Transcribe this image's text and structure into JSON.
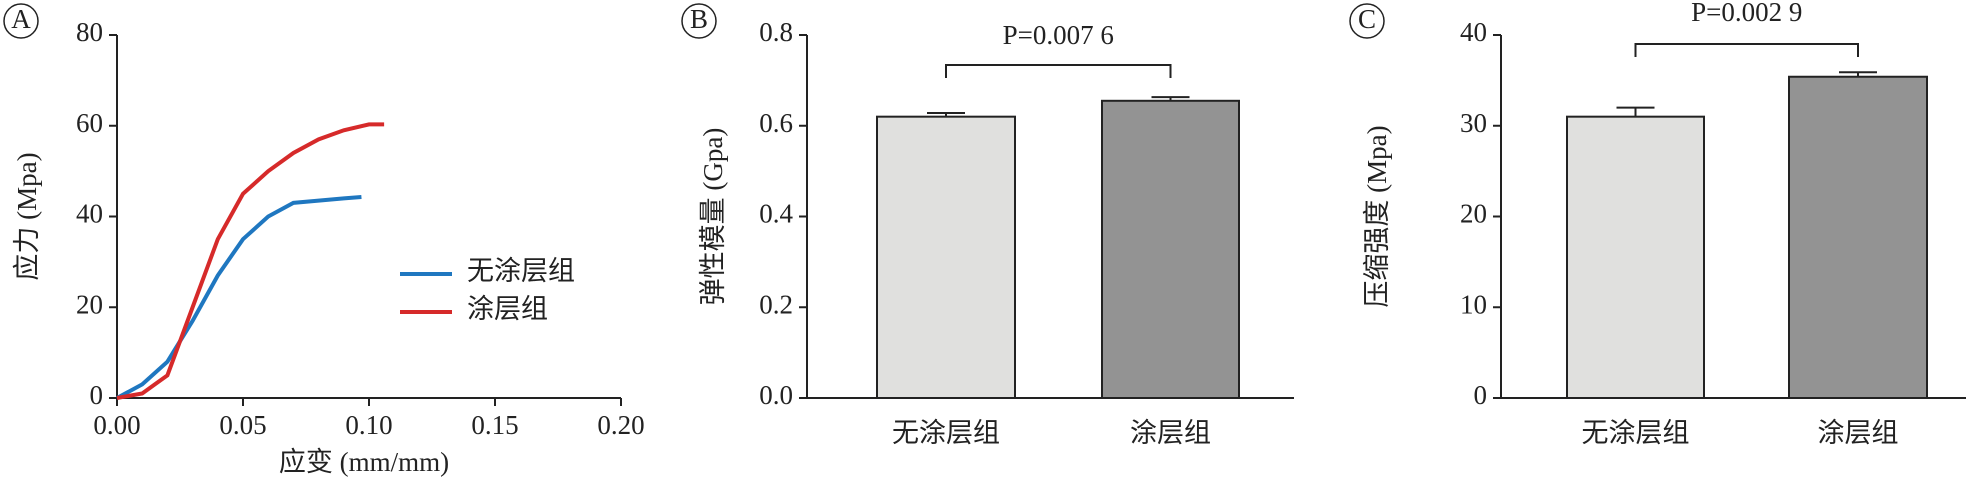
{
  "chart_data": [
    {
      "type": "line",
      "panel": "A",
      "xlabel": "应变 (mm/mm)",
      "ylabel": "应力 (Mpa)",
      "xlim": [
        0,
        0.2
      ],
      "xticks": [
        {
          "value": 0,
          "label": "0.00"
        },
        0.05,
        {
          "value": 0.1,
          "label": "0.10"
        },
        0.15,
        {
          "value": 0.2,
          "label": "0.20"
        }
      ],
      "ylim": [
        0,
        80
      ],
      "yticks": [
        0,
        20,
        40,
        60,
        80
      ],
      "series": [
        {
          "name": "无涂层组",
          "color": "#1f77c0",
          "x": [
            0,
            0.01,
            0.02,
            0.03,
            0.04,
            0.05,
            0.06,
            0.07,
            0.08,
            0.09,
            0.097
          ],
          "values": [
            0,
            3,
            8,
            17,
            27,
            35,
            40,
            43,
            43.5,
            44,
            44.3
          ]
        },
        {
          "name": "涂层组",
          "color": "#d62a2a",
          "x": [
            0,
            0.01,
            0.02,
            0.03,
            0.04,
            0.05,
            0.06,
            0.07,
            0.08,
            0.09,
            0.1,
            0.106
          ],
          "values": [
            0,
            1,
            5,
            20,
            35,
            45,
            50,
            54,
            57,
            59,
            60.3,
            60.3
          ]
        }
      ]
    },
    {
      "type": "bar",
      "panel": "B",
      "ylabel": "弹性模量 (Gpa)",
      "annotation": "P=0.007 6",
      "categories": [
        "无涂层组",
        "涂层组"
      ],
      "values": [
        0.62,
        0.655
      ],
      "errors": [
        0.008,
        0.008
      ],
      "colors": [
        "#e0e0de",
        "#939393"
      ],
      "ylim": [
        0,
        0.8
      ],
      "yticks": [
        {
          "value": 0,
          "label": "0.0"
        },
        0.2,
        0.4,
        0.6,
        0.8
      ]
    },
    {
      "type": "bar",
      "panel": "C",
      "ylabel": "压缩强度 (Mpa)",
      "annotation": "P=0.002 9",
      "categories": [
        "无涂层组",
        "涂层组"
      ],
      "values": [
        31,
        35.4
      ],
      "errors": [
        1.0,
        0.5
      ],
      "colors": [
        "#e0e0de",
        "#939393"
      ],
      "ylim": [
        0,
        40
      ],
      "yticks": [
        0,
        10,
        20,
        30,
        40
      ]
    }
  ]
}
